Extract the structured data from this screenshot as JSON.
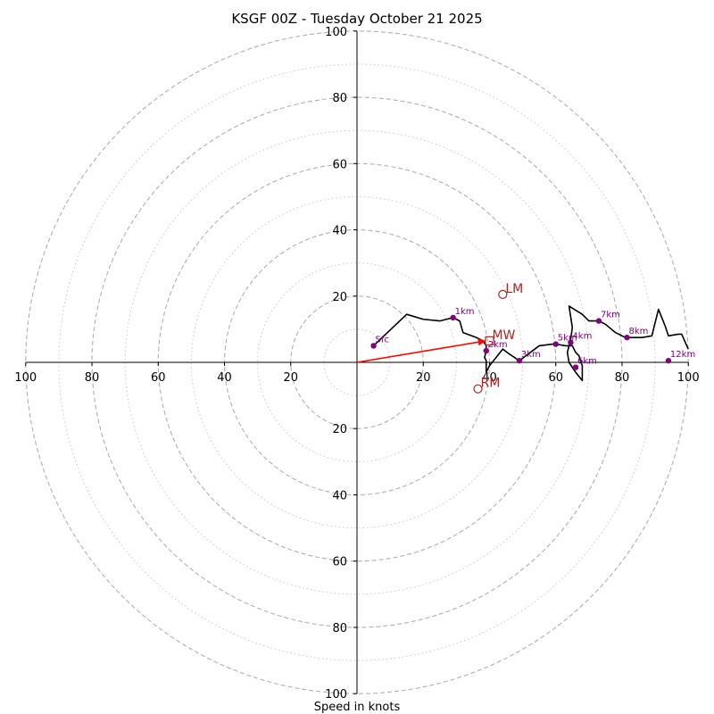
{
  "chart_data": {
    "type": "hodograph",
    "title": "KSGF 00Z - Tuesday October 21 2025",
    "xlabel": "Speed in knots",
    "range": [
      -100,
      100
    ],
    "ring_major": [
      20,
      40,
      60,
      80,
      100
    ],
    "ring_minor": [
      10,
      30,
      50,
      70,
      90
    ],
    "x_tick_values": [
      -100,
      -80,
      -60,
      -40,
      -20,
      20,
      40,
      60,
      80,
      100
    ],
    "x_tick_labels": [
      "100",
      "80",
      "60",
      "40",
      "20",
      "20",
      "40",
      "60",
      "80",
      "100"
    ],
    "y_tick_values": [
      100,
      80,
      60,
      40,
      20,
      -20,
      -40,
      -60,
      -80,
      -100
    ],
    "y_tick_labels": [
      "100",
      "80",
      "60",
      "40",
      "20",
      "20",
      "40",
      "60",
      "80",
      "100"
    ],
    "colors": {
      "trace": "#000000",
      "height_marker": "#800080",
      "storm_motion": "#b22222",
      "shear_vector": "#ff0000",
      "grid": "#b0b0b0"
    },
    "trace": [
      [
        5,
        5
      ],
      [
        15,
        14.5
      ],
      [
        20,
        13
      ],
      [
        25,
        12.5
      ],
      [
        27,
        13
      ],
      [
        29,
        13.5
      ],
      [
        31,
        12.5
      ],
      [
        32,
        9
      ],
      [
        36,
        7.5
      ],
      [
        38,
        6.5
      ],
      [
        39,
        5
      ],
      [
        39,
        3.5
      ],
      [
        38.5,
        1.5
      ],
      [
        39,
        0.5
      ],
      [
        39,
        -1.5
      ],
      [
        39,
        -3
      ],
      [
        40,
        -1
      ],
      [
        44,
        4
      ],
      [
        46,
        2.5
      ],
      [
        49,
        0.5
      ],
      [
        51,
        2
      ],
      [
        55,
        5
      ],
      [
        59,
        5.5
      ],
      [
        60,
        5.5
      ],
      [
        63,
        5
      ],
      [
        65,
        5
      ],
      [
        66,
        3
      ],
      [
        67,
        2
      ],
      [
        68,
        -1
      ],
      [
        68,
        -5.5
      ],
      [
        66,
        -3
      ],
      [
        64,
        0
      ],
      [
        63.5,
        3
      ],
      [
        64.5,
        7
      ],
      [
        65,
        10.5
      ],
      [
        64,
        17
      ],
      [
        68,
        14.5
      ],
      [
        70,
        12.5
      ],
      [
        73,
        12.5
      ],
      [
        75,
        11.5
      ],
      [
        78,
        9
      ],
      [
        81,
        7.5
      ],
      [
        86,
        7.5
      ],
      [
        89,
        8
      ],
      [
        91,
        16
      ],
      [
        93,
        11
      ],
      [
        94,
        8
      ],
      [
        97,
        8.5
      ],
      [
        98,
        8.5
      ],
      [
        100,
        4
      ]
    ],
    "height_markers": [
      {
        "label": "Sfc",
        "u": 5,
        "v": 5
      },
      {
        "label": "1km",
        "u": 29,
        "v": 13.5
      },
      {
        "label": "2km",
        "u": 39,
        "v": 3.5
      },
      {
        "label": "3km",
        "u": 49,
        "v": 0.5
      },
      {
        "label": "5km",
        "u": 60,
        "v": 5.5
      },
      {
        "label": "4km",
        "u": 64.5,
        "v": 6
      },
      {
        "label": "6km",
        "u": 66,
        "v": -1.5
      },
      {
        "label": "7km",
        "u": 73,
        "v": 12.5
      },
      {
        "label": "8km",
        "u": 81.5,
        "v": 7.5
      },
      {
        "label": "12km",
        "u": 94,
        "v": 0.5
      }
    ],
    "storm_motions": [
      {
        "label": "LM",
        "u": 44,
        "v": 20.5,
        "shape": "circle"
      },
      {
        "label": "MW",
        "u": 40,
        "v": 6.5,
        "shape": "square"
      },
      {
        "label": "RM",
        "u": 36.5,
        "v": -8,
        "shape": "circle"
      }
    ],
    "shear_vector": {
      "from": [
        0,
        0
      ],
      "to": [
        39,
        6.5
      ]
    }
  }
}
